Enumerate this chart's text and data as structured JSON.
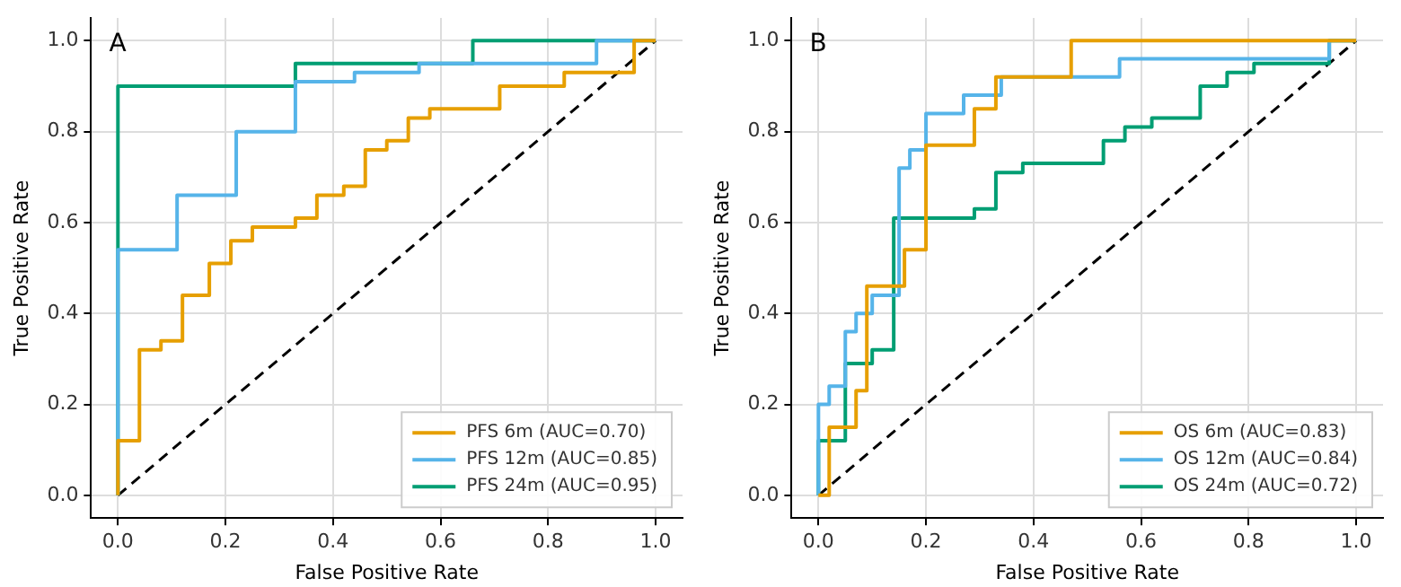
{
  "chart_data": [
    {
      "type": "step",
      "xlabel": "False Positive Rate",
      "ylabel": "True Positive Rate",
      "annotations": [
        "A"
      ],
      "xlim": [
        -0.05,
        1.05
      ],
      "ylim": [
        -0.05,
        1.05
      ],
      "xticks": [
        {
          "value": 0,
          "label": "0.0"
        },
        {
          "value": 0.2,
          "label": "0.2"
        },
        {
          "value": 0.4,
          "label": "0.4"
        },
        {
          "value": 0.6,
          "label": "0.6"
        },
        {
          "value": 0.8,
          "label": "0.8"
        },
        {
          "value": 1,
          "label": "1.0"
        }
      ],
      "yticks": [
        {
          "value": 0,
          "label": "0.0"
        },
        {
          "value": 0.2,
          "label": "0.2"
        },
        {
          "value": 0.4,
          "label": "0.4"
        },
        {
          "value": 0.6,
          "label": "0.6"
        },
        {
          "value": 0.8,
          "label": "0.8"
        },
        {
          "value": 1,
          "label": "1.0"
        }
      ],
      "grid": true,
      "legend": "bottom right",
      "marker": "none",
      "series": [
        {
          "name": "PFS 6m (AUC=0.70)",
          "color": "#e69f00",
          "x": [
            0,
            0,
            0.04,
            0.08,
            0.12,
            0.17,
            0.21,
            0.25,
            0.33,
            0.37,
            0.42,
            0.46,
            0.5,
            0.54,
            0.58,
            0.71,
            0.83,
            0.96,
            1
          ],
          "values": [
            0,
            0.12,
            0.32,
            0.34,
            0.44,
            0.51,
            0.56,
            0.59,
            0.61,
            0.66,
            0.68,
            0.76,
            0.78,
            0.83,
            0.85,
            0.9,
            0.93,
            1,
            1
          ]
        },
        {
          "name": "PFS 12m (AUC=0.85)",
          "color": "#56b4e9",
          "x": [
            0,
            0,
            0.11,
            0.22,
            0.33,
            0.44,
            0.56,
            0.89,
            1
          ],
          "values": [
            0,
            0.54,
            0.66,
            0.8,
            0.91,
            0.93,
            0.95,
            1,
            1
          ]
        },
        {
          "name": "PFS 24m (AUC=0.95)",
          "color": "#009e73",
          "x": [
            0,
            0,
            0.33,
            0.66,
            1
          ],
          "values": [
            0,
            0.9,
            0.95,
            1,
            1
          ]
        },
        {
          "type": "line",
          "color": "#000000",
          "line_style": "dashed",
          "x": [
            0,
            1
          ],
          "values": [
            0,
            1
          ]
        }
      ]
    },
    {
      "type": "step",
      "xlabel": "False Positive Rate",
      "ylabel": "True Positive Rate",
      "annotations": [
        "B"
      ],
      "xlim": [
        -0.05,
        1.05
      ],
      "ylim": [
        -0.05,
        1.05
      ],
      "xticks": [
        {
          "value": 0,
          "label": "0.0"
        },
        {
          "value": 0.2,
          "label": "0.2"
        },
        {
          "value": 0.4,
          "label": "0.4"
        },
        {
          "value": 0.6,
          "label": "0.6"
        },
        {
          "value": 0.8,
          "label": "0.8"
        },
        {
          "value": 1,
          "label": "1.0"
        }
      ],
      "yticks": [
        {
          "value": 0,
          "label": "0.0"
        },
        {
          "value": 0.2,
          "label": "0.2"
        },
        {
          "value": 0.4,
          "label": "0.4"
        },
        {
          "value": 0.6,
          "label": "0.6"
        },
        {
          "value": 0.8,
          "label": "0.8"
        },
        {
          "value": 1,
          "label": "1.0"
        }
      ],
      "grid": true,
      "legend": "bottom right",
      "marker": "none",
      "series": [
        {
          "name": "OS 6m (AUC=0.83)",
          "color": "#e69f00",
          "x": [
            0,
            0.02,
            0.07,
            0.09,
            0.16,
            0.2,
            0.29,
            0.33,
            0.47,
            1
          ],
          "values": [
            0,
            0.15,
            0.23,
            0.46,
            0.54,
            0.77,
            0.85,
            0.92,
            1,
            1
          ]
        },
        {
          "name": "OS 12m (AUC=0.84)",
          "color": "#56b4e9",
          "x": [
            0,
            0,
            0.02,
            0.05,
            0.07,
            0.1,
            0.15,
            0.17,
            0.2,
            0.27,
            0.34,
            0.56,
            0.95,
            1
          ],
          "values": [
            0,
            0.2,
            0.24,
            0.36,
            0.4,
            0.44,
            0.72,
            0.76,
            0.84,
            0.88,
            0.92,
            0.96,
            1,
            1
          ]
        },
        {
          "name": "OS 24m (AUC=0.72)",
          "color": "#009e73",
          "x": [
            0,
            0,
            0.05,
            0.1,
            0.14,
            0.29,
            0.33,
            0.38,
            0.53,
            0.57,
            0.62,
            0.71,
            0.76,
            0.81,
            0.95,
            1
          ],
          "values": [
            0,
            0.12,
            0.29,
            0.32,
            0.61,
            0.63,
            0.71,
            0.73,
            0.78,
            0.81,
            0.83,
            0.9,
            0.93,
            0.95,
            1,
            1
          ]
        },
        {
          "type": "line",
          "color": "#000000",
          "line_style": "dashed",
          "x": [
            0,
            1
          ],
          "values": [
            0,
            1
          ]
        }
      ]
    }
  ]
}
